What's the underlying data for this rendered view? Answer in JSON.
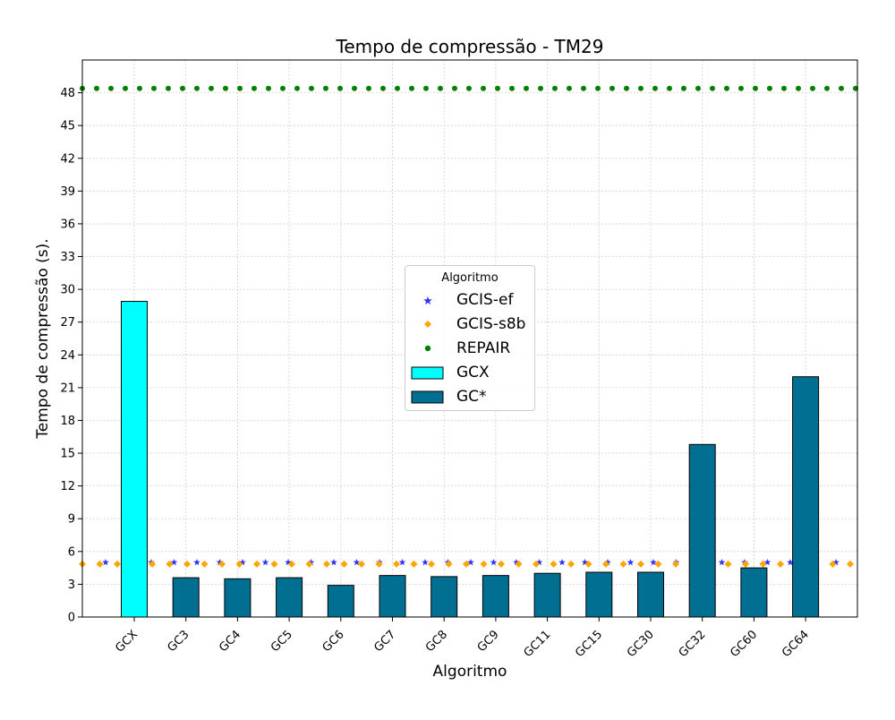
{
  "chart_data": {
    "type": "bar",
    "title": "Tempo de compressão -  TM29",
    "xlabel": "Algoritmo",
    "ylabel": "Tempo de compressão (s).",
    "ylim": [
      0,
      51
    ],
    "yticks": [
      0,
      3,
      6,
      9,
      12,
      15,
      18,
      21,
      24,
      27,
      30,
      33,
      36,
      39,
      42,
      45,
      48
    ],
    "grid": true,
    "categories": [
      "GCX",
      "GC3",
      "GC4",
      "GC5",
      "GC6",
      "GC7",
      "GC8",
      "GC9",
      "GC11",
      "GC15",
      "GC30",
      "GC32",
      "GC60",
      "GC64"
    ],
    "series": [
      {
        "name": "GCX",
        "kind": "bar",
        "color": "#00ffff",
        "values": [
          28.9,
          null,
          null,
          null,
          null,
          null,
          null,
          null,
          null,
          null,
          null,
          null,
          null,
          null
        ]
      },
      {
        "name": "GC*",
        "kind": "bar",
        "color": "#006f91",
        "values": [
          null,
          3.6,
          3.5,
          3.6,
          2.9,
          3.8,
          3.7,
          3.8,
          4.0,
          4.1,
          4.1,
          15.8,
          4.5,
          22.0
        ]
      },
      {
        "name": "GCIS-ef",
        "kind": "hline-markers",
        "marker": "star",
        "color": "#3333ff",
        "value": 5.0
      },
      {
        "name": "GCIS-s8b",
        "kind": "hline-markers",
        "marker": "diamond",
        "color": "#ffa500",
        "value": 4.85
      },
      {
        "name": "REPAIR",
        "kind": "hline-markers",
        "marker": "circle",
        "color": "#008000",
        "value": 48.4
      }
    ],
    "legend": {
      "title": "Algoritmo",
      "position": "center",
      "entries": [
        "GCIS-ef",
        "GCIS-s8b",
        "REPAIR",
        "GCX",
        "GC*"
      ]
    }
  }
}
